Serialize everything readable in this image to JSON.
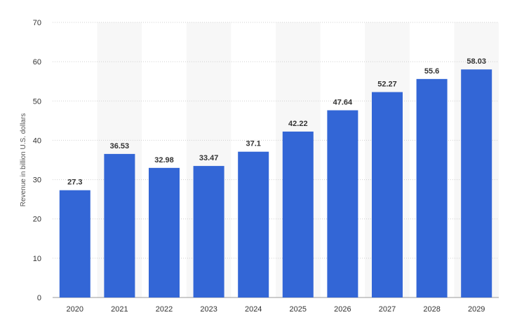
{
  "colors": {
    "bar": "#3366D6",
    "band": "#F7F7F7",
    "grid": "#D0D0D0",
    "text": "#333333"
  },
  "chart_data": {
    "type": "bar",
    "categories": [
      "2020",
      "2021",
      "2022",
      "2023",
      "2024",
      "2025",
      "2026",
      "2027",
      "2028",
      "2029"
    ],
    "values": [
      27.3,
      36.53,
      32.98,
      33.47,
      37.1,
      42.22,
      47.64,
      52.27,
      55.6,
      58.03
    ],
    "value_labels": [
      "27.3",
      "36.53",
      "32.98",
      "33.47",
      "37.1",
      "42.22",
      "47.64",
      "52.27",
      "55.6",
      "58.03"
    ],
    "title": "",
    "xlabel": "",
    "ylabel": "Revenue in billion U.S. dollars",
    "ylim": [
      0,
      70
    ],
    "yticks": [
      0,
      10,
      20,
      30,
      40,
      50,
      60,
      70
    ],
    "grid": true,
    "alternate_bands": true
  }
}
